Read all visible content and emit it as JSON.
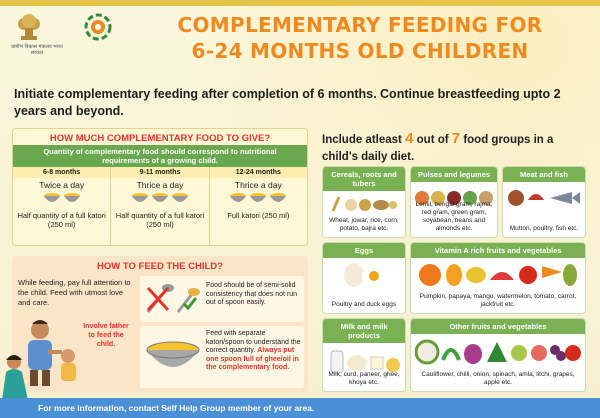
{
  "title": {
    "line1": "COMPLEMENTARY FEEDING FOR",
    "line2": "6-24 MONTHS OLD CHILDREN"
  },
  "ministry_caption": "ग्रामीण विकास मंत्रालय भारत सरकार",
  "intro": "Initiate complementary feeding after completion of 6 months. Continue breastfeeding upto 2 years and beyond.",
  "quantity_panel": {
    "heading": "HOW MUCH COMPLEMENTARY FOOD TO GIVE?",
    "banner": "Quantity of complementary food should correspond to nutritional requirements of a growing child.",
    "columns": [
      {
        "age": "6-8 months",
        "frequency": "Twice a day",
        "amount": "Half quantity of a full katori (250 ml)"
      },
      {
        "age": "9-11 months",
        "frequency": "Thrice a day",
        "amount": "Half quantity of a full katori (250 ml)"
      },
      {
        "age": "12-24 months",
        "frequency": "Thrice a day",
        "amount": "Full katori (250 ml)"
      }
    ]
  },
  "feed_panel": {
    "heading": "HOW TO FEED THE CHILD?",
    "attention": "While feeding, pay full attention to the child. Feed with utmost love and care.",
    "father": "Involve father to feed the child.",
    "tip1": "Food should be of semi-solid consistency that does not run out of spoon easily.",
    "tip2_main": "Feed with separate katori/spoon to understand the correct quantity.",
    "tip2_red": "Always put one spoon full of ghee/oil in the complementary food."
  },
  "groups_intro": {
    "prefix": "Include atleast",
    "n1": "4",
    "mid": "out of",
    "n2": "7",
    "suffix": "food groups in a child's daily diet."
  },
  "groups": [
    {
      "title": "Cereals, roots and tubers",
      "foods": "Wheat, jowar, rice, corn, potato, bajra etc."
    },
    {
      "title": "Pulses and legumes",
      "foods": "Lentil, bengal gram, rajma, red gram, green gram, soyabean, beans and almonds etc."
    },
    {
      "title": "Meat and fish",
      "foods": "Mutton, poultry, fish etc."
    },
    {
      "title": "Eggs",
      "foods": "Poultry and duck eggs"
    },
    {
      "title": "Vitamin A rich fruits and vegetables",
      "foods": "Pumpkin, papaya, mango, watermelon, tomato, carrot, jackfruit etc."
    },
    {
      "title": "Milk and milk products",
      "foods": "Milk, curd, paneer, ghee, khoya etc."
    },
    {
      "title": "Other fruits and vegetables",
      "foods": "Cauliflower, chilli, onion, spinach, amla, litchi, grapes, apple etc."
    }
  ],
  "footer": "For more information, contact Self Help Group member of your area.",
  "colors": {
    "accent": "#f08a1e",
    "red": "#e2342a",
    "green": "#79b153",
    "footer": "#4b8fd6"
  }
}
